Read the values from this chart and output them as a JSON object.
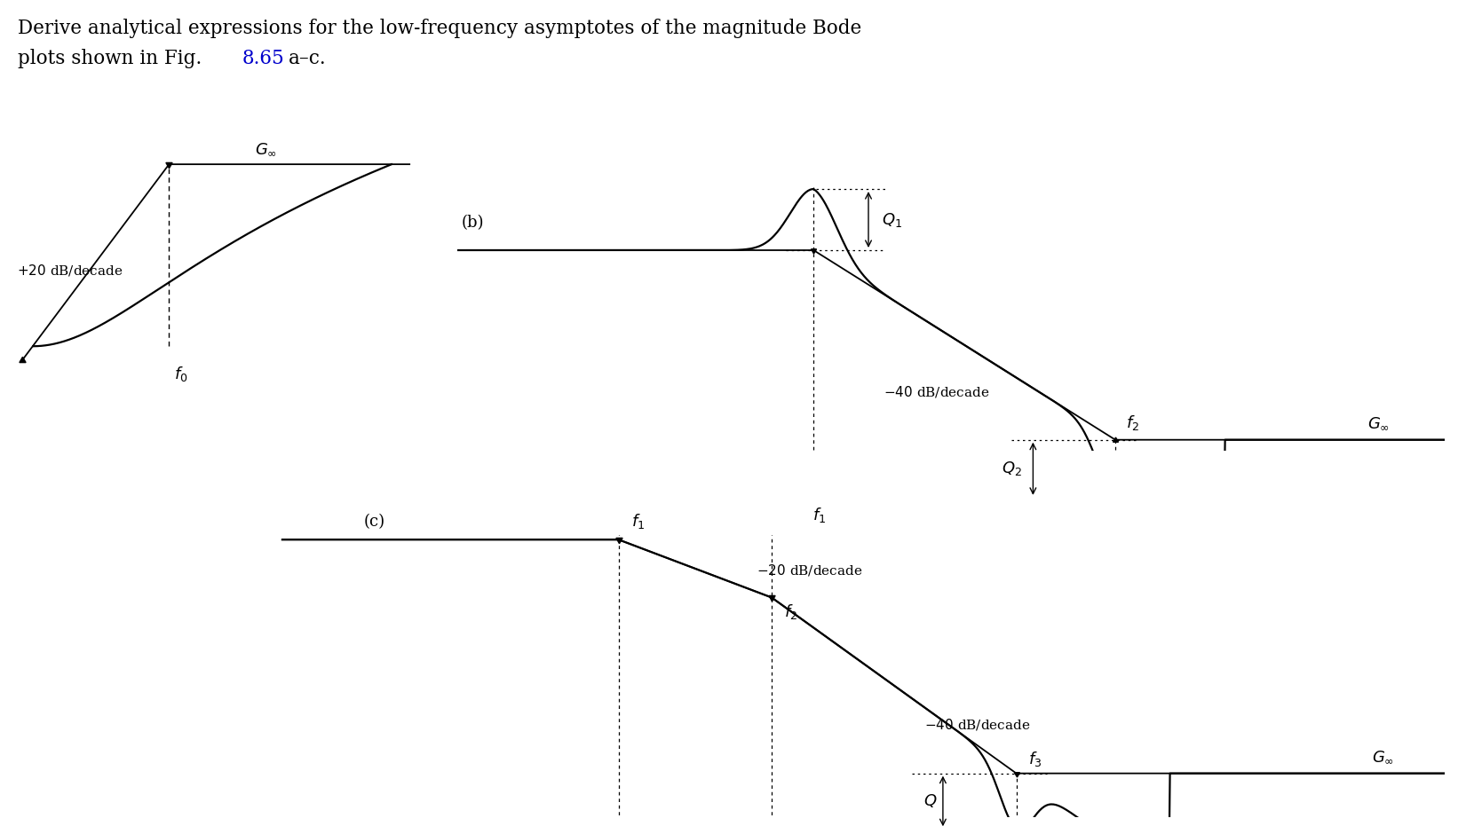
{
  "background": "#ffffff",
  "text_color": "#000000",
  "ref_color": "#0000cc",
  "line_color": "#000000",
  "title_line1": "Derive analytical expressions for the low-frequency asymptotes of the magnitude Bode",
  "title_line2_pre": "plots shown in Fig. 8.65",
  "title_line2_ref": "8.65",
  "title_line2_post": "a–c.",
  "plot_a": {
    "f0_x": 3.8,
    "ginf_y": 1.8,
    "f0_val": 3.5,
    "x_start": 0.0,
    "x_end": 10.0,
    "xlim": [
      -0.5,
      11.0
    ],
    "ylim": [
      -0.7,
      2.6
    ]
  },
  "plot_b": {
    "f1": 5.5,
    "f2": 11.0,
    "Q1_height": 0.55,
    "Q2_depth": 0.52,
    "slope": -0.31,
    "xlim": [
      -1.0,
      17.0
    ],
    "ylim": [
      -1.8,
      1.2
    ]
  },
  "plot_c": {
    "f1": 5.5,
    "f2": 8.0,
    "f3": 12.0,
    "slope1": -0.2,
    "slope2": -0.38,
    "Q_depth": 0.48,
    "xlim": [
      -1.0,
      19.0
    ],
    "ylim": [
      -2.4,
      0.7
    ]
  }
}
